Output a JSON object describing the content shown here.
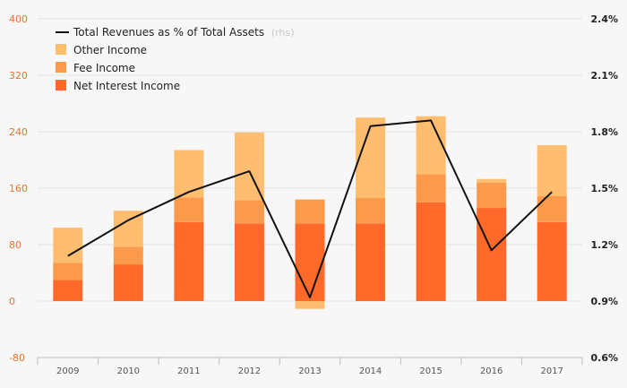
{
  "chart_data": {
    "type": "bar",
    "stacked": true,
    "categories": [
      "2009",
      "2010",
      "2011",
      "2012",
      "2013",
      "2014",
      "2015",
      "2016",
      "2017"
    ],
    "series": [
      {
        "name": "Net Interest Income",
        "color": "#ff6a2a",
        "values": [
          30,
          52,
          112,
          110,
          110,
          110,
          140,
          132,
          112
        ]
      },
      {
        "name": "Fee Income",
        "color": "#fc9a4c",
        "values": [
          24,
          25,
          35,
          33,
          34,
          36,
          40,
          36,
          37
        ]
      },
      {
        "name": "Other Income",
        "color": "#ffbe6f",
        "values": [
          50,
          51,
          67,
          96,
          -11,
          114,
          82,
          5,
          72
        ]
      }
    ],
    "line_series": {
      "name": "Total Revenues as % of Total Assets",
      "name_suffix": "(rhs)",
      "axis": "right",
      "color": "#111111",
      "values": [
        1.14,
        1.33,
        1.48,
        1.59,
        0.92,
        1.83,
        1.86,
        1.17,
        1.48
      ]
    },
    "y_left": {
      "ylim": [
        -80,
        400
      ],
      "ticks": [
        "-80",
        "0",
        "80",
        "160",
        "240",
        "320",
        "400"
      ]
    },
    "y_right": {
      "ylim": [
        0.6,
        2.4
      ],
      "ticks": [
        "0.6%",
        "0.9%",
        "1.2%",
        "1.5%",
        "1.8%",
        "2.1%",
        "2.4%"
      ]
    },
    "grid": true,
    "legend_position": "top-left",
    "legend_order": [
      "line",
      "Other Income",
      "Fee Income",
      "Net Interest Income"
    ]
  }
}
